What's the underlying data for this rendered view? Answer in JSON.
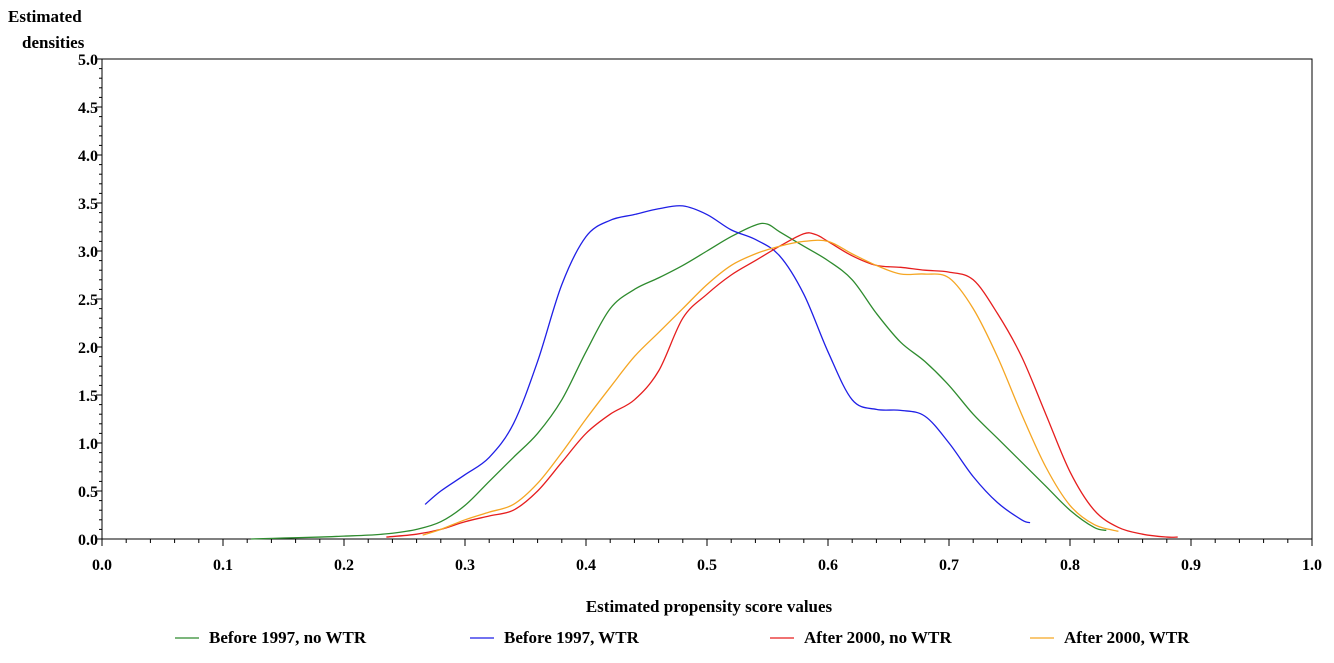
{
  "chart_data": {
    "type": "line",
    "title": "",
    "xlabel": "Estimated propensity score values",
    "ylabel": [
      "Estimated",
      "densities"
    ],
    "xlim": [
      0.0,
      1.0
    ],
    "ylim": [
      0.0,
      5.0
    ],
    "x_ticks": [
      "0.0",
      "0.1",
      "0.2",
      "0.3",
      "0.4",
      "0.5",
      "0.6",
      "0.7",
      "0.8",
      "0.9",
      "1.0"
    ],
    "y_ticks": [
      "0.0",
      "0.5",
      "1.0",
      "1.5",
      "2.0",
      "2.5",
      "3.0",
      "3.5",
      "4.0",
      "4.5",
      "5.0"
    ],
    "grid": false,
    "legend_position": "bottom",
    "series": [
      {
        "name": "Before 1997, no WTR",
        "color": "#2e8b2e",
        "x": [
          0.123,
          0.15,
          0.18,
          0.2,
          0.22,
          0.24,
          0.26,
          0.28,
          0.3,
          0.32,
          0.34,
          0.36,
          0.38,
          0.4,
          0.42,
          0.44,
          0.46,
          0.48,
          0.5,
          0.52,
          0.54,
          0.55,
          0.56,
          0.58,
          0.6,
          0.62,
          0.64,
          0.66,
          0.68,
          0.7,
          0.72,
          0.74,
          0.76,
          0.78,
          0.8,
          0.82,
          0.83
        ],
        "y": [
          0.0,
          0.01,
          0.02,
          0.03,
          0.04,
          0.06,
          0.1,
          0.18,
          0.35,
          0.6,
          0.85,
          1.1,
          1.45,
          1.95,
          2.4,
          2.6,
          2.72,
          2.85,
          3.0,
          3.15,
          3.27,
          3.28,
          3.2,
          3.05,
          2.9,
          2.7,
          2.35,
          2.05,
          1.85,
          1.6,
          1.3,
          1.05,
          0.8,
          0.55,
          0.3,
          0.12,
          0.09
        ]
      },
      {
        "name": "Before 1997, WTR",
        "color": "#1f1fe6",
        "x": [
          0.267,
          0.28,
          0.3,
          0.32,
          0.34,
          0.36,
          0.38,
          0.4,
          0.42,
          0.44,
          0.46,
          0.48,
          0.5,
          0.52,
          0.54,
          0.56,
          0.58,
          0.6,
          0.62,
          0.64,
          0.66,
          0.68,
          0.7,
          0.72,
          0.74,
          0.76,
          0.767
        ],
        "y": [
          0.36,
          0.5,
          0.67,
          0.85,
          1.2,
          1.85,
          2.65,
          3.15,
          3.32,
          3.38,
          3.44,
          3.47,
          3.38,
          3.22,
          3.12,
          2.95,
          2.55,
          1.95,
          1.45,
          1.35,
          1.34,
          1.28,
          1.0,
          0.65,
          0.38,
          0.2,
          0.17
        ]
      },
      {
        "name": "After 2000, no WTR",
        "color": "#e61e1e",
        "x": [
          0.235,
          0.26,
          0.28,
          0.3,
          0.32,
          0.34,
          0.36,
          0.38,
          0.4,
          0.42,
          0.44,
          0.46,
          0.48,
          0.5,
          0.52,
          0.54,
          0.56,
          0.58,
          0.59,
          0.6,
          0.62,
          0.64,
          0.66,
          0.68,
          0.7,
          0.72,
          0.74,
          0.76,
          0.78,
          0.8,
          0.82,
          0.84,
          0.86,
          0.88,
          0.889
        ],
        "y": [
          0.02,
          0.05,
          0.1,
          0.18,
          0.24,
          0.3,
          0.5,
          0.8,
          1.1,
          1.3,
          1.45,
          1.75,
          2.3,
          2.55,
          2.75,
          2.9,
          3.05,
          3.18,
          3.17,
          3.1,
          2.95,
          2.85,
          2.83,
          2.8,
          2.78,
          2.7,
          2.35,
          1.9,
          1.3,
          0.7,
          0.3,
          0.12,
          0.05,
          0.02,
          0.02
        ]
      },
      {
        "name": "After 2000, WTR",
        "color": "#f5a623",
        "x": [
          0.265,
          0.28,
          0.3,
          0.32,
          0.34,
          0.36,
          0.38,
          0.4,
          0.42,
          0.44,
          0.46,
          0.48,
          0.5,
          0.52,
          0.54,
          0.56,
          0.58,
          0.6,
          0.62,
          0.64,
          0.66,
          0.68,
          0.7,
          0.72,
          0.74,
          0.76,
          0.78,
          0.8,
          0.82,
          0.84
        ],
        "y": [
          0.04,
          0.1,
          0.2,
          0.28,
          0.36,
          0.58,
          0.9,
          1.25,
          1.58,
          1.9,
          2.15,
          2.4,
          2.65,
          2.85,
          2.97,
          3.05,
          3.1,
          3.1,
          2.97,
          2.85,
          2.76,
          2.76,
          2.72,
          2.4,
          1.9,
          1.3,
          0.75,
          0.35,
          0.15,
          0.08
        ]
      }
    ]
  }
}
